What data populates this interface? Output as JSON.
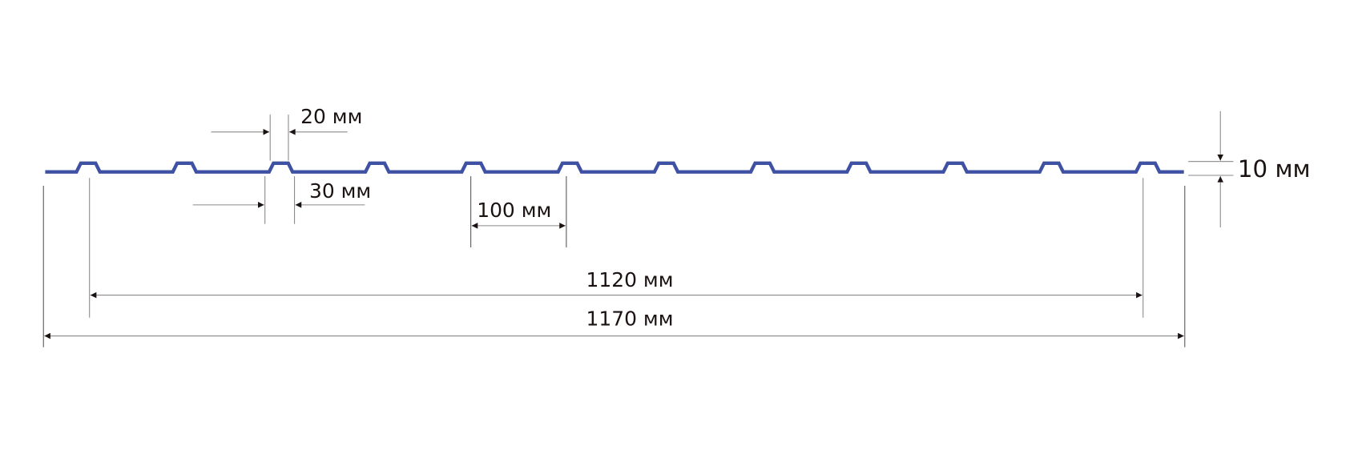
{
  "colors": {
    "profile": "#3f51a3",
    "dimension_lines": "#8a8a8a",
    "text": "#1a1311"
  },
  "profile": {
    "ribs": 12
  },
  "dimensions": {
    "rib_top_width": "20 мм",
    "rib_base_width": "30 мм",
    "rib_pitch": "100 мм",
    "useful_width": "1120 мм",
    "total_width": "1170 мм",
    "rib_height": "10 мм"
  }
}
